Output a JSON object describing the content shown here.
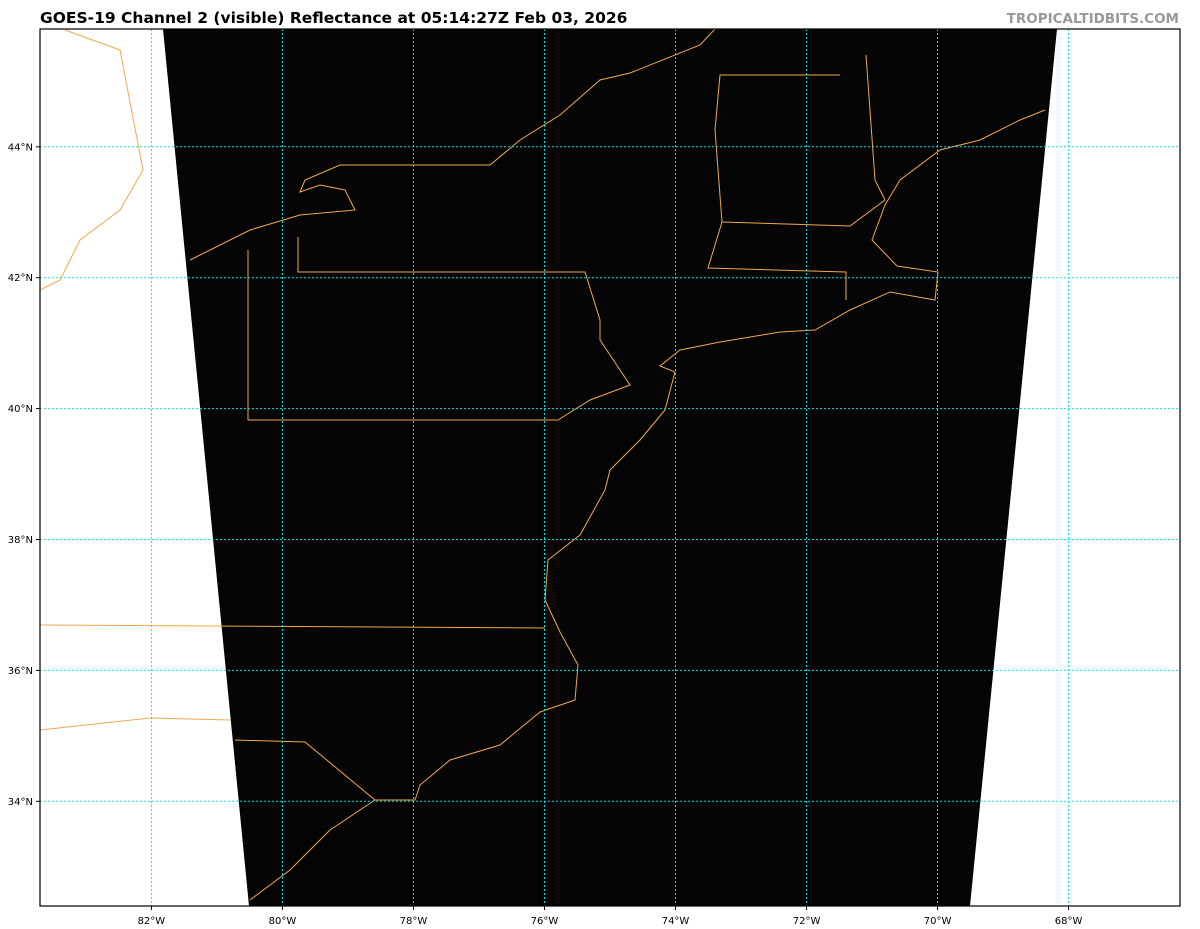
{
  "header": {
    "title": "GOES-19 Channel 2 (visible) Reflectance at 05:14:27Z Feb 03, 2026",
    "brand": "TROPICALTIDBITS.COM"
  },
  "map": {
    "extent": {
      "lon": [
        -83.7,
        -66.3
      ],
      "lat": [
        32.4,
        45.8
      ]
    },
    "longitude_ticks": [
      {
        "value": -82,
        "label": "82°W"
      },
      {
        "value": -80,
        "label": "80°W"
      },
      {
        "value": -78,
        "label": "78°W"
      },
      {
        "value": -76,
        "label": "76°W"
      },
      {
        "value": -74,
        "label": "74°W"
      },
      {
        "value": -72,
        "label": "72°W"
      },
      {
        "value": -70,
        "label": "70°W"
      },
      {
        "value": -68,
        "label": "68°W"
      }
    ],
    "latitude_ticks": [
      {
        "value": 44,
        "label": "44°N"
      },
      {
        "value": 42,
        "label": "42°N"
      },
      {
        "value": 40,
        "label": "40°N"
      },
      {
        "value": 38,
        "label": "38°N"
      },
      {
        "value": 36,
        "label": "36°N"
      },
      {
        "value": 34,
        "label": "34°N"
      }
    ],
    "colors": {
      "gridlines": "#00e5e5",
      "coastlines": "#f0a850",
      "imagery": "#050505",
      "background": "#ffffff"
    }
  }
}
